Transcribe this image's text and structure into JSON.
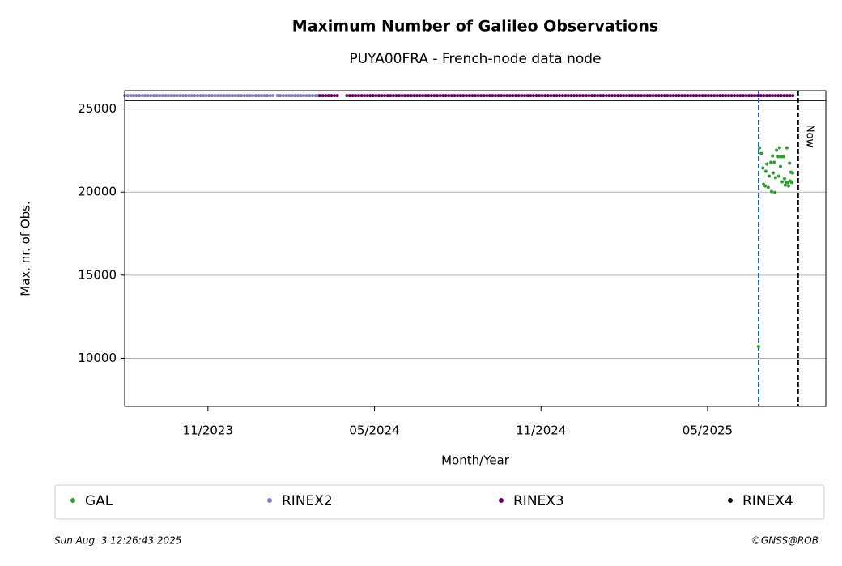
{
  "chart_data": {
    "type": "scatter",
    "title": "Maximum Number of Galileo Observations",
    "subtitle": "PUYA00FRA - French-node data node",
    "x_label": "Month/Year",
    "y_label": "Max. nr. of Obs.",
    "xlim": [
      2023.583,
      2025.688
    ],
    "ylim": [
      7100,
      26100
    ],
    "xticks": [
      {
        "value": 2023.833,
        "label": "11/2023"
      },
      {
        "value": 2024.333,
        "label": "05/2024"
      },
      {
        "value": 2024.833,
        "label": "11/2024"
      },
      {
        "value": 2025.333,
        "label": "05/2025"
      }
    ],
    "yticks": [
      10000,
      15000,
      20000,
      25000
    ],
    "grid": true,
    "hlines": [
      25500
    ],
    "vlines": [
      {
        "x": 2025.486,
        "color": "#1f5fbf"
      },
      {
        "x": 2025.605,
        "color": "#000000",
        "label": "Now"
      }
    ],
    "series": [
      {
        "name": "GAL",
        "type": "scatter",
        "color": "#2ca02c",
        "x": [
          2025.486,
          2025.489,
          2025.494,
          2025.499,
          2025.501,
          2025.506,
          2025.508,
          2025.511,
          2025.515,
          2025.518,
          2025.523,
          2025.525,
          2025.528,
          2025.53,
          2025.533,
          2025.535,
          2025.537,
          2025.54,
          2025.545,
          2025.547,
          2025.549,
          2025.552,
          2025.554,
          2025.557,
          2025.562,
          2025.564,
          2025.566,
          2025.569,
          2025.571,
          2025.574,
          2025.576,
          2025.579,
          2025.581,
          2025.583,
          2025.586,
          2025.588
        ],
        "values": [
          10700,
          22660,
          22320,
          21450,
          20470,
          20370,
          21250,
          21690,
          20280,
          20960,
          21790,
          20030,
          22180,
          21150,
          21790,
          19980,
          20860,
          22520,
          22130,
          20960,
          22660,
          21540,
          22130,
          20620,
          22130,
          20810,
          20420,
          20570,
          22660,
          20570,
          20370,
          21740,
          20670,
          21200,
          20570,
          21150
        ]
      },
      {
        "name": "RINEX2",
        "type": "line",
        "color": "#7f7fbf",
        "x": [
          2023.583,
          2024.035,
          null,
          2024.042,
          2024.169
        ],
        "values": [
          25800,
          25800,
          null,
          25800,
          25800
        ]
      },
      {
        "name": "RINEX3",
        "type": "line",
        "color": "#6b006b",
        "x": [
          2024.169,
          2024.225,
          null,
          2024.25,
          2025.59
        ],
        "values": [
          25800,
          25800,
          null,
          25800,
          25800
        ]
      },
      {
        "name": "RINEX4",
        "type": "scatter",
        "color": "#1a0020",
        "x": [],
        "values": []
      }
    ],
    "timestamp": "Sun Aug  3 12:26:43 2025",
    "credit": "©GNSS@ROB"
  }
}
